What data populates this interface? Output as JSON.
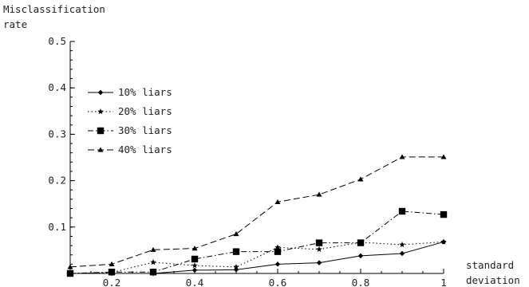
{
  "chart_data": {
    "type": "line",
    "ylabel_lines": [
      "Misclassification",
      "rate"
    ],
    "xlabel_lines": [
      "standard",
      "deviation"
    ],
    "xlim": [
      0.1,
      1.0
    ],
    "ylim": [
      0,
      0.5
    ],
    "x_ticks": [
      0.2,
      0.4,
      0.6,
      0.8,
      1
    ],
    "x_tick_labels": [
      "0.2",
      "0.4",
      "0.6",
      "0.8",
      "1"
    ],
    "y_ticks": [
      0.1,
      0.2,
      0.3,
      0.4,
      0.5
    ],
    "y_tick_labels": [
      "0.1",
      "0.2",
      "0.3",
      "0.4",
      "0.5"
    ],
    "grid": false,
    "legend_position": "top-left",
    "x": [
      0.1,
      0.2,
      0.3,
      0.4,
      0.5,
      0.6,
      0.7,
      0.8,
      0.9,
      1.0
    ],
    "series": [
      {
        "name": "10% liars",
        "marker": "diamond",
        "dash": "solid",
        "values": [
          0.0,
          0.0,
          0.0,
          0.007,
          0.008,
          0.02,
          0.023,
          0.038,
          0.043,
          0.068
        ]
      },
      {
        "name": "20% liars",
        "marker": "star",
        "dash": "dotted",
        "values": [
          0.0,
          0.002,
          0.024,
          0.017,
          0.014,
          0.056,
          0.052,
          0.067,
          0.062,
          0.068
        ]
      },
      {
        "name": "30% liars",
        "marker": "square",
        "dash": "dashdot",
        "values": [
          0.0,
          0.003,
          0.003,
          0.031,
          0.047,
          0.047,
          0.066,
          0.066,
          0.134,
          0.127
        ]
      },
      {
        "name": "40% liars",
        "marker": "triangle",
        "dash": "dashed",
        "values": [
          0.014,
          0.02,
          0.051,
          0.054,
          0.085,
          0.154,
          0.17,
          0.203,
          0.251,
          0.251
        ]
      }
    ]
  }
}
